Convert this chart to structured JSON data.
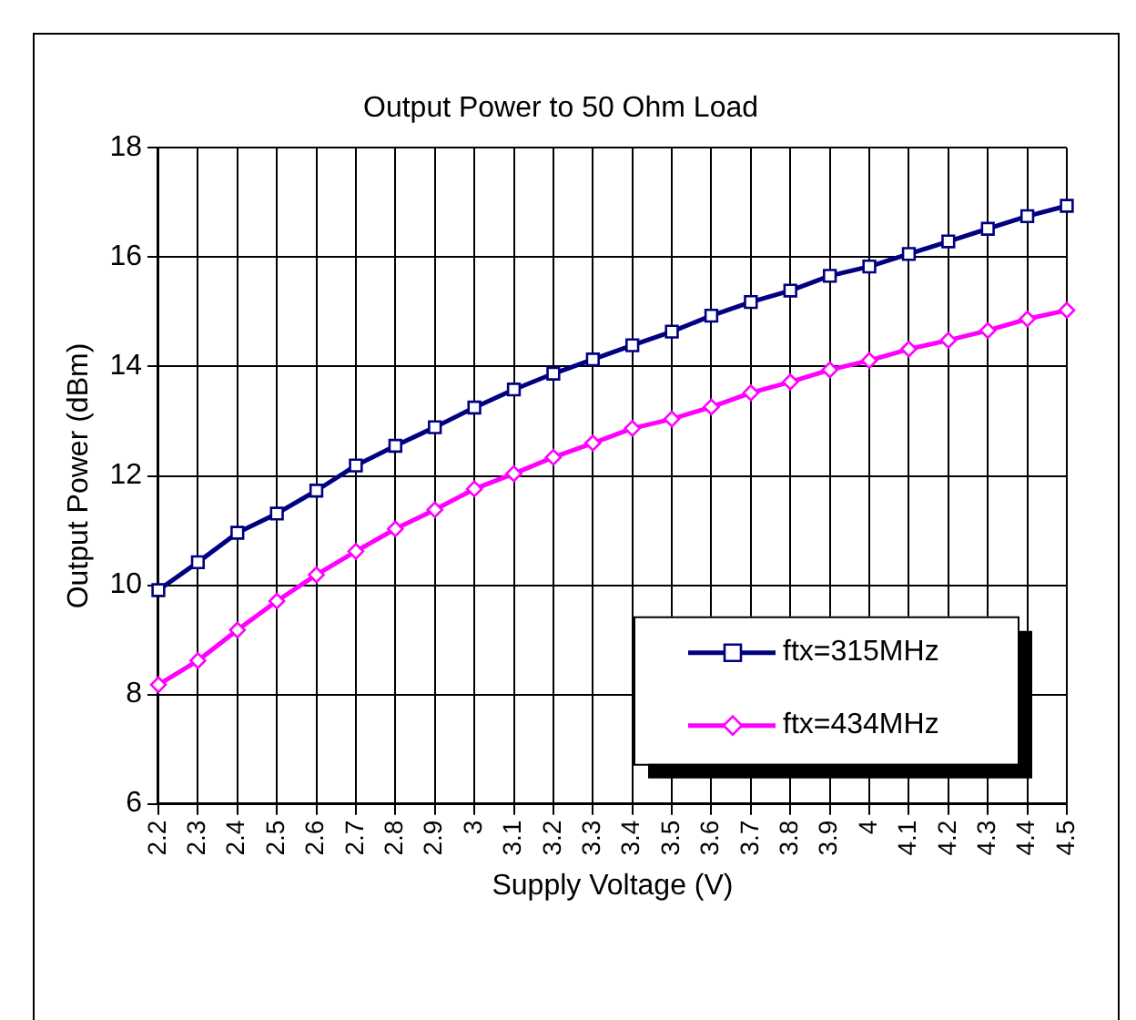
{
  "chart_data": {
    "type": "line",
    "title": "Output Power to 50 Ohm Load",
    "xlabel": "Supply Voltage (V)",
    "ylabel": "Output Power (dBm)",
    "categories": [
      "2.2",
      "2.3",
      "2.4",
      "2.5",
      "2.6",
      "2.7",
      "2.8",
      "2.9",
      "3",
      "3.1",
      "3.2",
      "3.3",
      "3.4",
      "3.5",
      "3.6",
      "3.7",
      "3.8",
      "3.9",
      "4",
      "4.1",
      "4.2",
      "4.3",
      "4.4",
      "4.5"
    ],
    "series": [
      {
        "name": "ftx=315MHz",
        "color": "#000080",
        "marker": "square",
        "values": [
          9.91,
          10.42,
          10.96,
          11.31,
          11.73,
          12.19,
          12.55,
          12.89,
          13.25,
          13.58,
          13.87,
          14.13,
          14.39,
          14.64,
          14.93,
          15.18,
          15.39,
          15.66,
          15.83,
          16.06,
          16.29,
          16.52,
          16.75,
          16.94
        ]
      },
      {
        "name": "ftx=434MHz",
        "color": "#ff00ff",
        "marker": "diamond",
        "values": [
          8.18,
          8.62,
          9.18,
          9.71,
          10.19,
          10.62,
          11.03,
          11.38,
          11.76,
          12.04,
          12.34,
          12.6,
          12.87,
          13.04,
          13.26,
          13.52,
          13.72,
          13.94,
          14.11,
          14.32,
          14.48,
          14.66,
          14.87,
          15.03
        ]
      }
    ],
    "ylim": [
      6,
      18
    ],
    "yticks": [
      6,
      8,
      10,
      12,
      14,
      16,
      18
    ],
    "grid": true,
    "legend": "bottom right",
    "line_style": "solid"
  }
}
